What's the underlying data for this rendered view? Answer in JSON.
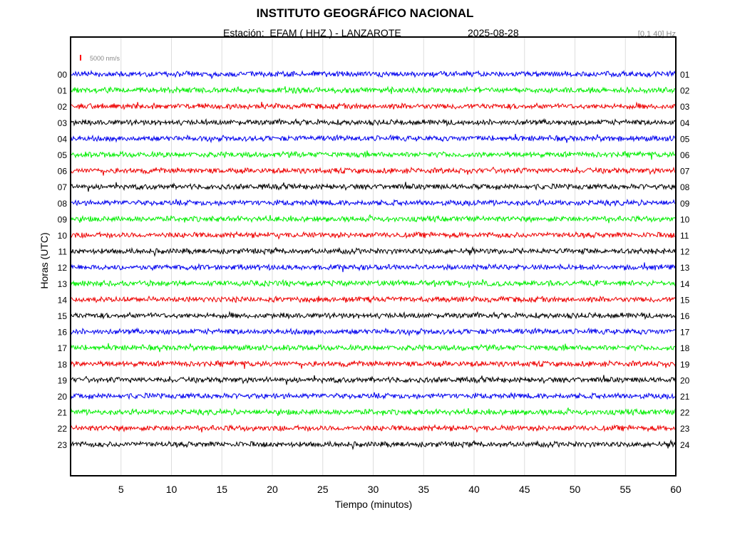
{
  "header": {
    "title": "INSTITUTO GEOGRÁFICO NACIONAL",
    "station_line": "Estación:  EFAM ( HHZ ) - LANZAROTE",
    "date": "2025-08-28",
    "filter_band": "[0.1 40] Hz"
  },
  "chart_data": {
    "type": "line",
    "title": "INSTITUTO GEOGRÁFICO NACIONAL",
    "xlabel": "Tiempo (minutos)",
    "ylabel": "Horas (UTC)",
    "xlim": [
      0,
      60
    ],
    "x_ticks": [
      "5",
      "10",
      "15",
      "20",
      "25",
      "30",
      "35",
      "40",
      "45",
      "50",
      "55",
      "60"
    ],
    "left_hour_labels": [
      "00",
      "01",
      "02",
      "03",
      "04",
      "05",
      "06",
      "07",
      "08",
      "09",
      "10",
      "11",
      "12",
      "13",
      "14",
      "15",
      "16",
      "17",
      "18",
      "19",
      "20",
      "21",
      "22",
      "23"
    ],
    "right_hour_labels": [
      "01",
      "02",
      "03",
      "04",
      "05",
      "06",
      "07",
      "08",
      "09",
      "10",
      "11",
      "12",
      "13",
      "14",
      "15",
      "16",
      "17",
      "18",
      "19",
      "20",
      "21",
      "22",
      "23",
      "24"
    ],
    "trace_colors": [
      "#0000ee",
      "#00ee00",
      "#ee0000",
      "#000000"
    ],
    "scale_label": "5000 nm/s",
    "scale_color": "#ff0000",
    "grid": true
  }
}
